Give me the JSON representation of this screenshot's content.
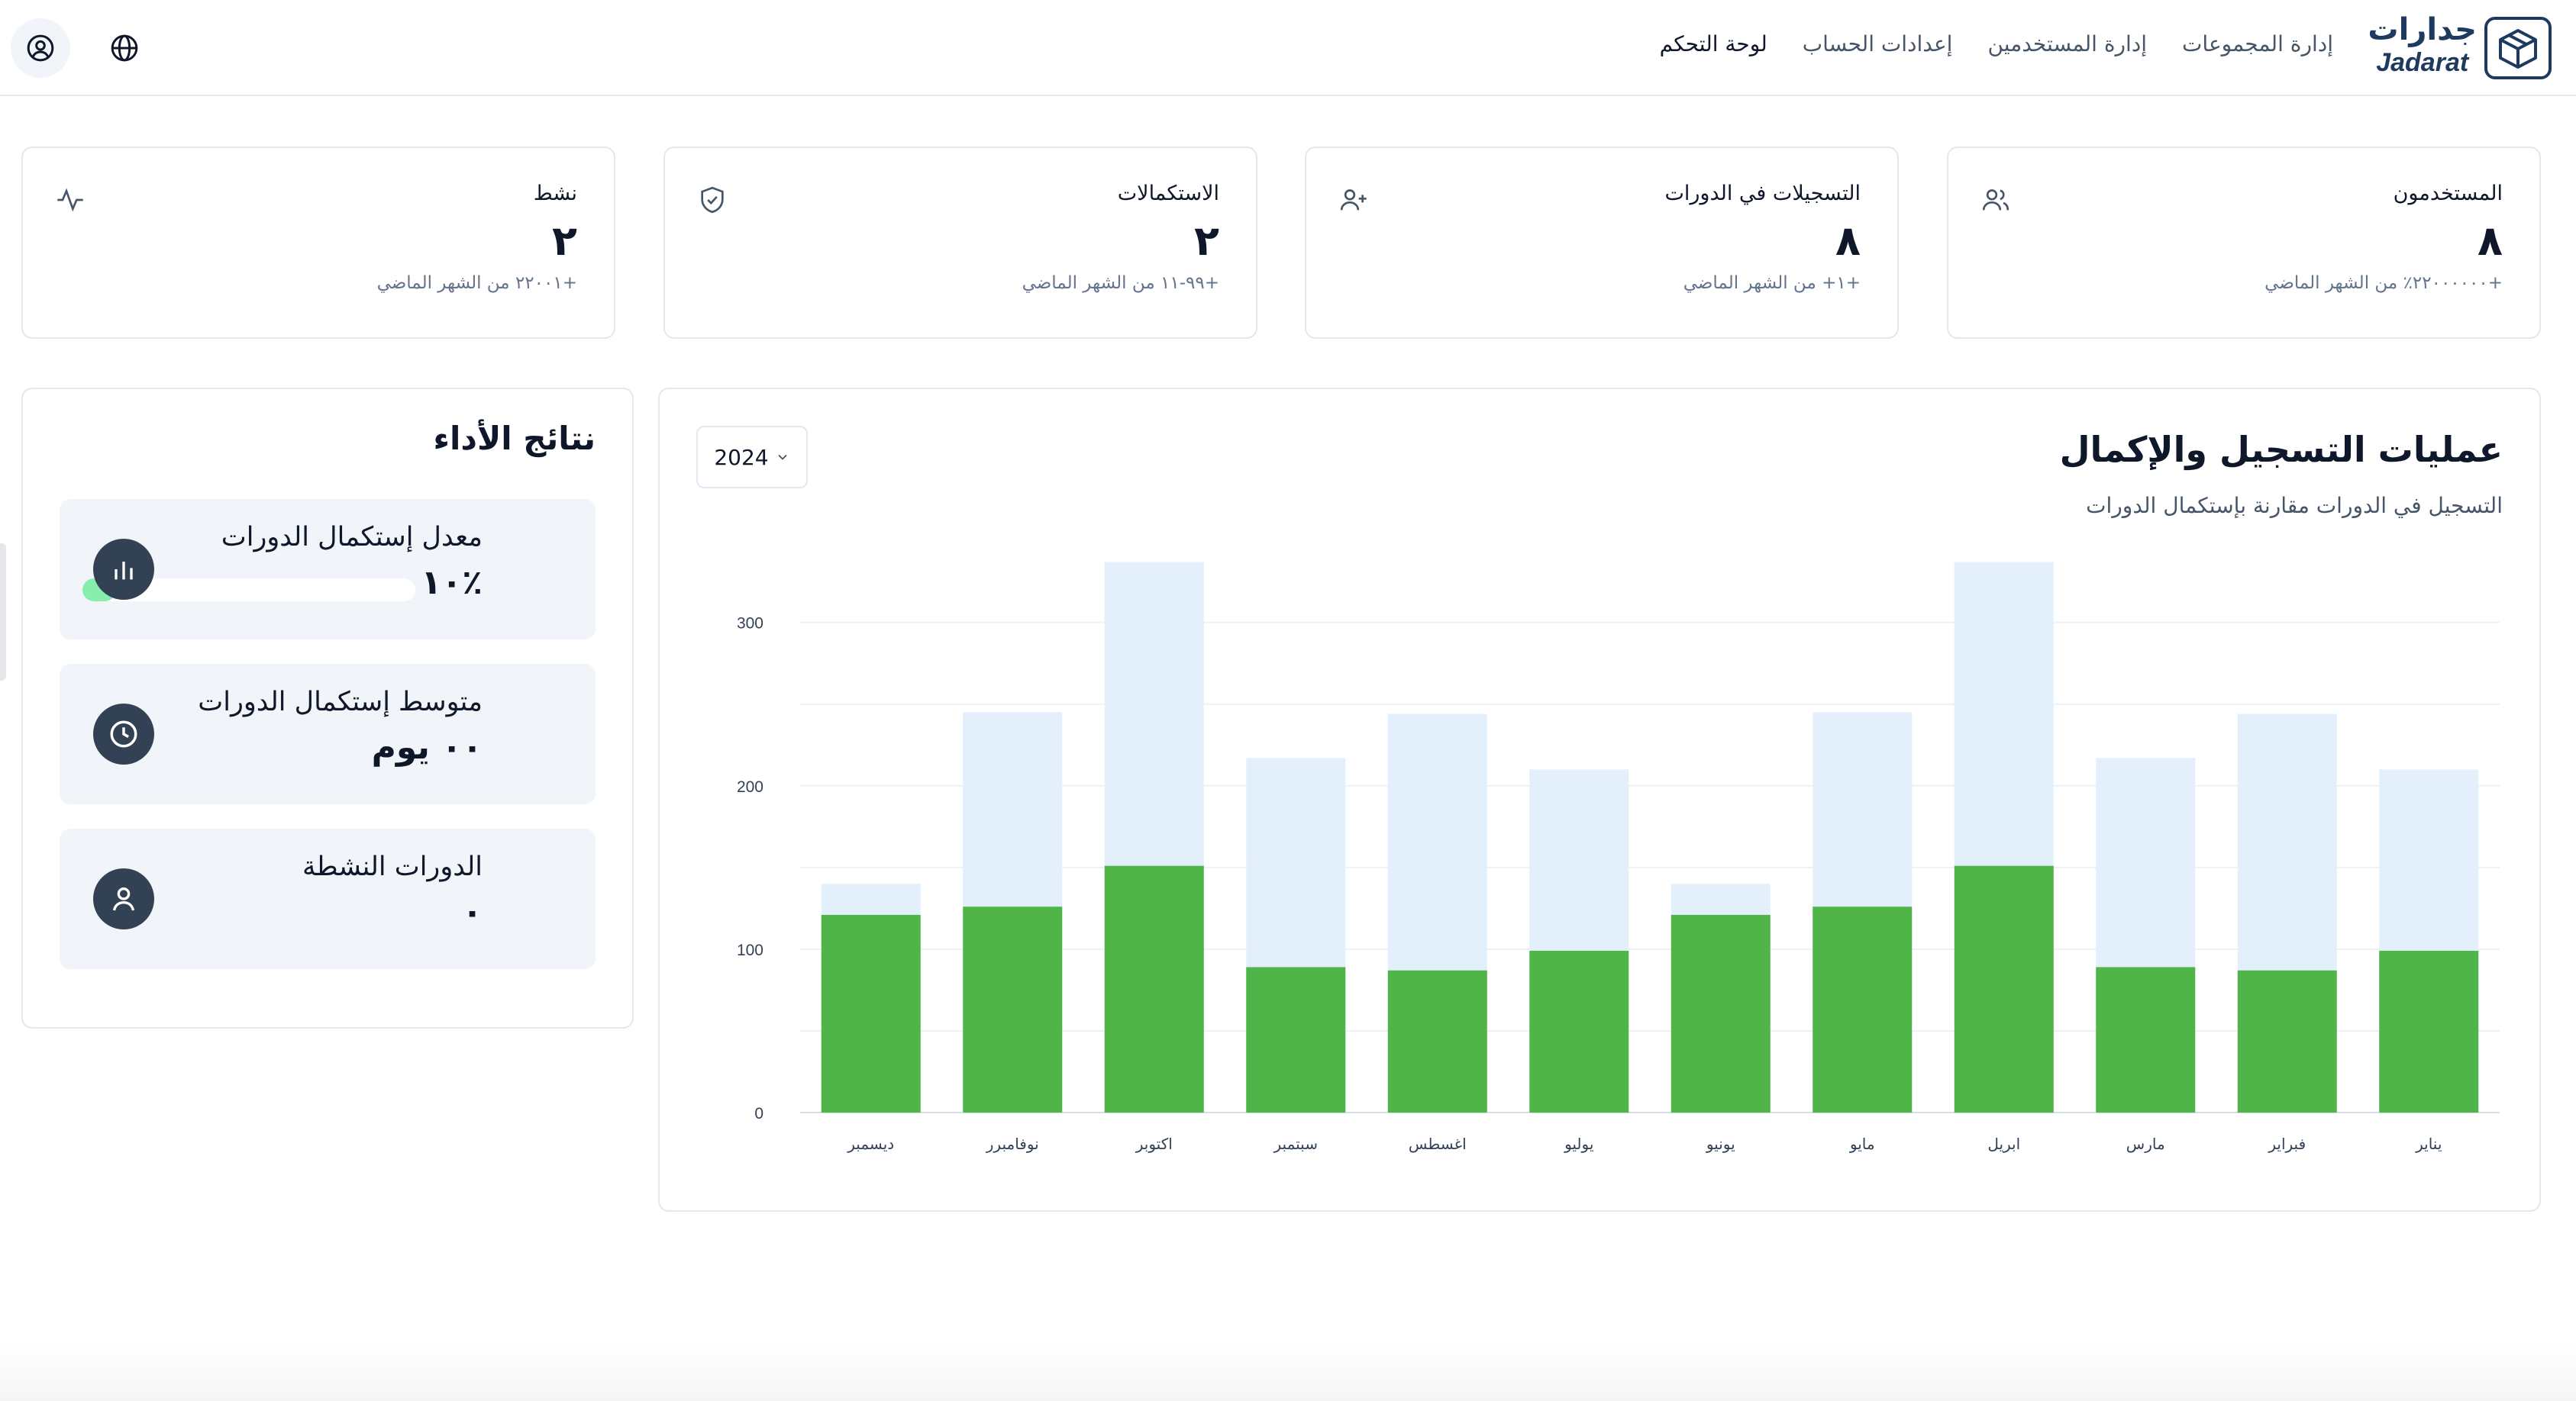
{
  "header": {
    "logo_ar": "جدارات",
    "logo_en": "Jadarat",
    "nav": [
      {
        "label": "لوحة التحكم",
        "active": true
      },
      {
        "label": "إعدادات الحساب",
        "active": false
      },
      {
        "label": "إدارة المستخدمين",
        "active": false
      },
      {
        "label": "إدارة المجموعات",
        "active": false
      }
    ]
  },
  "stats": [
    {
      "title": "المستخدمون",
      "value": "٨",
      "note": "+٢٢٠٠٠٠٠٠٪ من الشهر الماضي",
      "icon": "users-icon"
    },
    {
      "title": "التسجيلات في الدورات",
      "value": "٨",
      "note": "+١+ من الشهر الماضي",
      "icon": "user-plus-icon"
    },
    {
      "title": "الاستكمالات",
      "value": "٢",
      "note": "+٩٩-١١ من الشهر الماضي",
      "icon": "shield-check-icon"
    },
    {
      "title": "نشط",
      "value": "٢",
      "note": "+٢٢٠٠١ من الشهر الماضي",
      "icon": "activity-icon"
    }
  ],
  "performance": {
    "title": "نتائج الأداء",
    "items": [
      {
        "label": "معدل إستكمال الدورات",
        "value": "٪١٠",
        "progress": 0.1,
        "icon": "bar-chart-icon"
      },
      {
        "label": "متوسط إستكمال الدورات",
        "value": "٠٠ يوم",
        "icon": "clock-icon"
      },
      {
        "label": "الدورات النشطة",
        "value": "٠",
        "icon": "user-icon"
      }
    ]
  },
  "chart_panel": {
    "title": "عمليات التسجيل والإكمال",
    "subtitle": "التسجيل في الدورات مقارنة بإستكمال الدورات",
    "year": "2024"
  },
  "chart_data": {
    "type": "bar",
    "stacked": false,
    "categories": [
      "ديسمبر",
      "نوفامبرر",
      "اكتوبر",
      "سبتمبر",
      "اغسطس",
      "يوليو",
      "يونيو",
      "مايو",
      "ابريل",
      "مارس",
      "فبراير",
      "يناير"
    ],
    "series": [
      {
        "values": [
          140,
          245,
          337,
          217,
          244,
          210,
          140,
          245,
          337,
          217,
          244,
          210
        ],
        "color": "#e3f0fb"
      },
      {
        "values": [
          121,
          126,
          151,
          89,
          87,
          99,
          121,
          126,
          151,
          89,
          87,
          99
        ],
        "color": "#4fb548"
      }
    ],
    "yticks": [
      0,
      100,
      200,
      300
    ],
    "ylim": [
      0,
      340
    ],
    "grid": true
  },
  "colors": {
    "brand": "#1e3a5f",
    "enrolled": "#e3f0fb",
    "completed": "#4fb548",
    "progress": "#86efac"
  }
}
